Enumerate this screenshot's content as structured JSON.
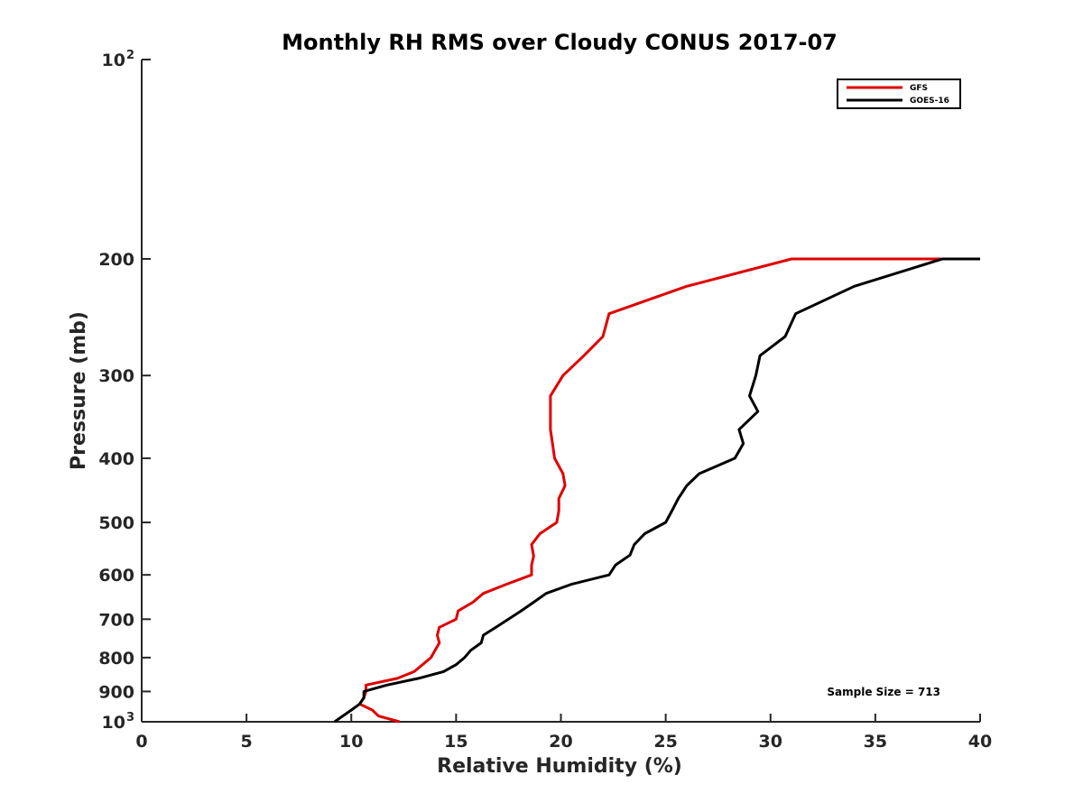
{
  "chart_data": {
    "type": "line",
    "title": "Monthly RH RMS over Cloudy CONUS  2017-07",
    "xlabel": "Relative Humidity (%)",
    "ylabel": "Pressure (mb)",
    "xlim": [
      0,
      40
    ],
    "ylim": [
      100,
      1000
    ],
    "y_scale": "log",
    "y_reversed": true,
    "grid": false,
    "legend_position": "top-right",
    "annotation": "Sample Size = 713",
    "x_ticks": [
      {
        "value": 0,
        "label": "0"
      },
      {
        "value": 5,
        "label": "5"
      },
      {
        "value": 10,
        "label": "10"
      },
      {
        "value": 15,
        "label": "15"
      },
      {
        "value": 20,
        "label": "20"
      },
      {
        "value": 25,
        "label": "25"
      },
      {
        "value": 30,
        "label": "30"
      },
      {
        "value": 35,
        "label": "35"
      },
      {
        "value": 40,
        "label": "40"
      }
    ],
    "y_ticks": [
      {
        "value": 100,
        "label": "10",
        "sup": "2"
      },
      {
        "value": 200,
        "label": "200"
      },
      {
        "value": 300,
        "label": "300"
      },
      {
        "value": 400,
        "label": "400"
      },
      {
        "value": 500,
        "label": "500"
      },
      {
        "value": 600,
        "label": "600"
      },
      {
        "value": 700,
        "label": "700"
      },
      {
        "value": 800,
        "label": "800"
      },
      {
        "value": 900,
        "label": "900"
      },
      {
        "value": 1000,
        "label": "10",
        "sup": "3"
      }
    ],
    "series": [
      {
        "name": "GFS",
        "color": "#e00000",
        "points": [
          [
            40.0,
            200
          ],
          [
            31.0,
            200
          ],
          [
            26.0,
            220
          ],
          [
            22.3,
            242
          ],
          [
            22.0,
            262
          ],
          [
            21.1,
            280
          ],
          [
            20.1,
            300
          ],
          [
            19.5,
            322
          ],
          [
            19.5,
            340
          ],
          [
            19.5,
            362
          ],
          [
            19.6,
            380
          ],
          [
            19.7,
            400
          ],
          [
            20.1,
            422
          ],
          [
            20.2,
            440
          ],
          [
            19.9,
            460
          ],
          [
            19.9,
            480
          ],
          [
            19.8,
            500
          ],
          [
            19.0,
            520
          ],
          [
            18.6,
            540
          ],
          [
            18.7,
            562
          ],
          [
            18.6,
            580
          ],
          [
            18.6,
            600
          ],
          [
            17.4,
            620
          ],
          [
            16.3,
            640
          ],
          [
            15.8,
            660
          ],
          [
            15.1,
            680
          ],
          [
            15.0,
            700
          ],
          [
            14.2,
            720
          ],
          [
            14.1,
            740
          ],
          [
            14.2,
            760
          ],
          [
            14.0,
            780
          ],
          [
            13.8,
            800
          ],
          [
            13.4,
            820
          ],
          [
            13.0,
            840
          ],
          [
            12.2,
            860
          ],
          [
            10.7,
            880
          ],
          [
            10.7,
            900
          ],
          [
            10.6,
            920
          ],
          [
            10.4,
            940
          ],
          [
            11.0,
            960
          ],
          [
            11.3,
            980
          ],
          [
            12.3,
            1000
          ]
        ]
      },
      {
        "name": "GOES-16",
        "color": "#000000",
        "points": [
          [
            40.0,
            200
          ],
          [
            38.2,
            200
          ],
          [
            34.0,
            220
          ],
          [
            31.2,
            242
          ],
          [
            30.7,
            262
          ],
          [
            29.5,
            280
          ],
          [
            29.3,
            300
          ],
          [
            29.0,
            322
          ],
          [
            29.4,
            340
          ],
          [
            28.5,
            362
          ],
          [
            28.7,
            380
          ],
          [
            28.3,
            400
          ],
          [
            26.6,
            422
          ],
          [
            26.0,
            440
          ],
          [
            25.6,
            460
          ],
          [
            25.3,
            480
          ],
          [
            25.0,
            500
          ],
          [
            24.0,
            520
          ],
          [
            23.5,
            540
          ],
          [
            23.3,
            560
          ],
          [
            22.6,
            580
          ],
          [
            22.3,
            600
          ],
          [
            20.5,
            620
          ],
          [
            19.3,
            640
          ],
          [
            18.7,
            660
          ],
          [
            18.1,
            680
          ],
          [
            17.5,
            700
          ],
          [
            16.9,
            720
          ],
          [
            16.3,
            740
          ],
          [
            16.2,
            760
          ],
          [
            15.7,
            780
          ],
          [
            15.4,
            800
          ],
          [
            15.0,
            820
          ],
          [
            14.4,
            840
          ],
          [
            13.2,
            860
          ],
          [
            11.7,
            880
          ],
          [
            10.6,
            900
          ],
          [
            10.6,
            920
          ],
          [
            10.4,
            940
          ],
          [
            10.0,
            960
          ],
          [
            9.2,
            1000
          ]
        ]
      }
    ]
  }
}
